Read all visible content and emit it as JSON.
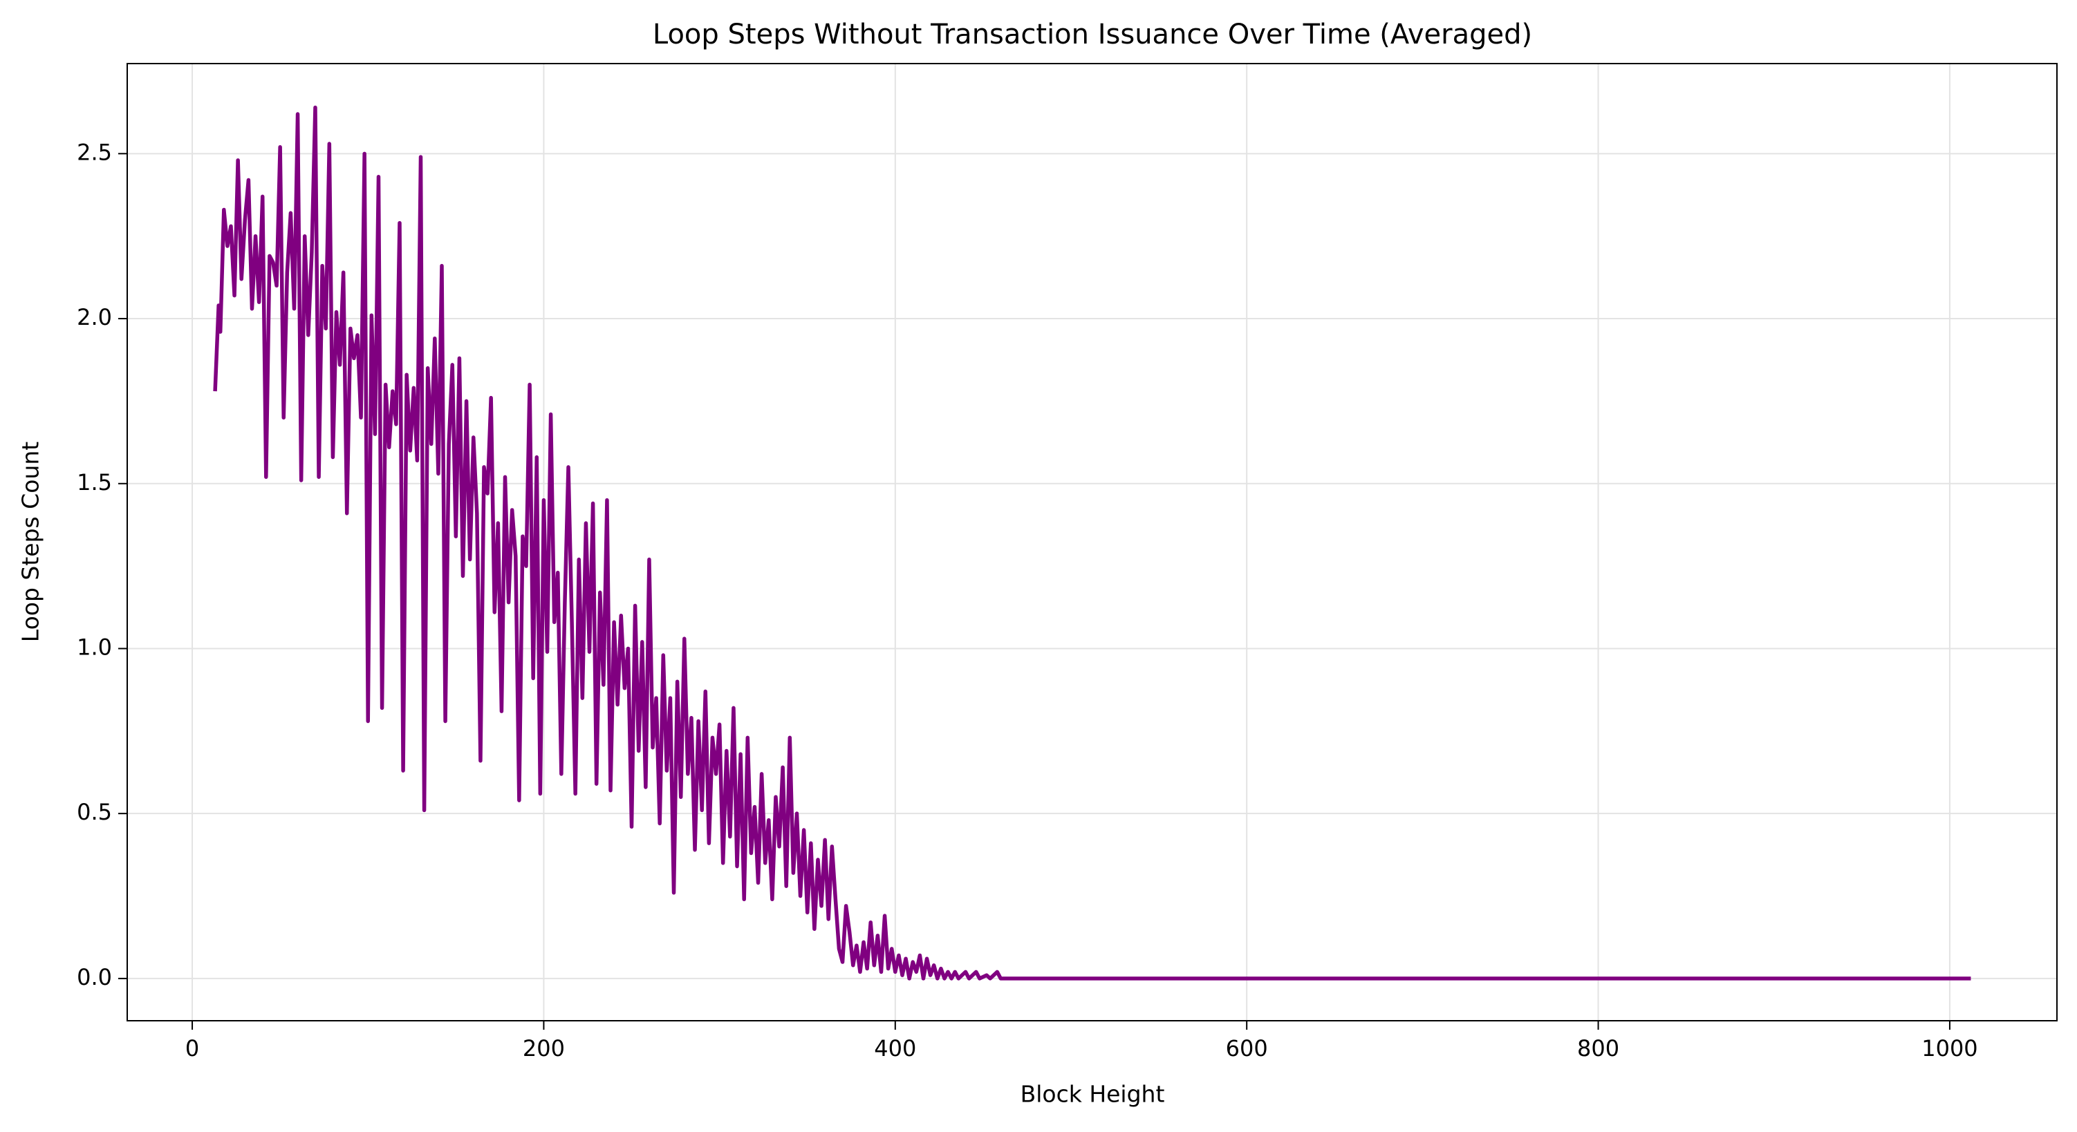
{
  "chart_data": {
    "type": "line",
    "title": "Loop Steps Without Transaction Issuance Over Time (Averaged)",
    "xlabel": "Block Height",
    "ylabel": "Loop Steps Count",
    "grid": true,
    "xlim": [
      -37,
      1061
    ],
    "ylim": [
      -0.128,
      2.773
    ],
    "xticks": [
      0,
      200,
      400,
      600,
      800,
      1000
    ],
    "yticks": [
      {
        "value": 0,
        "label": "0.0"
      },
      {
        "value": 0.5,
        "label": "0.5"
      },
      {
        "value": 1,
        "label": "1.0"
      },
      {
        "value": 1.5,
        "label": "1.5"
      },
      {
        "value": 2,
        "label": "2.0"
      },
      {
        "value": 2.5,
        "label": "2.5"
      }
    ],
    "x": [
      13,
      15,
      16,
      18,
      20,
      22,
      24,
      26,
      28,
      30,
      32,
      34,
      36,
      38,
      40,
      42,
      44,
      46,
      48,
      50,
      52,
      54,
      56,
      58,
      60,
      62,
      64,
      66,
      68,
      70,
      72,
      74,
      76,
      78,
      80,
      82,
      84,
      86,
      88,
      90,
      92,
      94,
      96,
      98,
      100,
      102,
      104,
      106,
      108,
      110,
      112,
      114,
      116,
      118,
      120,
      122,
      124,
      126,
      128,
      130,
      132,
      134,
      136,
      138,
      140,
      142,
      144,
      146,
      148,
      150,
      152,
      154,
      156,
      158,
      160,
      162,
      164,
      166,
      168,
      170,
      172,
      174,
      176,
      178,
      180,
      182,
      184,
      186,
      188,
      190,
      192,
      194,
      196,
      198,
      200,
      202,
      204,
      206,
      208,
      210,
      212,
      214,
      216,
      218,
      220,
      222,
      224,
      226,
      228,
      230,
      232,
      234,
      236,
      238,
      240,
      242,
      244,
      246,
      248,
      250,
      252,
      254,
      256,
      258,
      260,
      262,
      264,
      266,
      268,
      270,
      272,
      274,
      276,
      278,
      280,
      282,
      284,
      286,
      288,
      290,
      292,
      294,
      296,
      298,
      300,
      302,
      304,
      306,
      308,
      310,
      312,
      314,
      316,
      318,
      320,
      322,
      324,
      326,
      328,
      330,
      332,
      334,
      336,
      338,
      340,
      342,
      344,
      346,
      348,
      350,
      352,
      354,
      356,
      358,
      360,
      362,
      364,
      366,
      368,
      370,
      372,
      374,
      376,
      378,
      380,
      382,
      384,
      386,
      388,
      390,
      392,
      394,
      396,
      398,
      400,
      402,
      404,
      406,
      408,
      410,
      412,
      414,
      416,
      418,
      420,
      422,
      424,
      426,
      428,
      430,
      432,
      434,
      436,
      440,
      442,
      446,
      448,
      452,
      454,
      458,
      460,
      1012
    ],
    "series": [
      {
        "name": "Loop Steps",
        "color": "#800080",
        "values": [
          1.78,
          2.04,
          1.96,
          2.33,
          2.22,
          2.28,
          2.07,
          2.48,
          2.12,
          2.3,
          2.42,
          2.03,
          2.25,
          2.05,
          2.37,
          1.52,
          2.19,
          2.17,
          2.1,
          2.52,
          1.7,
          2.14,
          2.32,
          2.03,
          2.62,
          1.51,
          2.25,
          1.95,
          2.2,
          2.64,
          1.52,
          2.16,
          1.97,
          2.53,
          1.58,
          2.02,
          1.86,
          2.14,
          1.41,
          1.97,
          1.88,
          1.95,
          1.7,
          2.5,
          0.78,
          2.01,
          1.65,
          2.43,
          0.82,
          1.8,
          1.61,
          1.78,
          1.68,
          2.29,
          0.63,
          1.83,
          1.6,
          1.79,
          1.57,
          2.49,
          0.51,
          1.85,
          1.62,
          1.94,
          1.53,
          2.16,
          0.78,
          1.62,
          1.86,
          1.34,
          1.88,
          1.22,
          1.75,
          1.27,
          1.64,
          1.41,
          0.66,
          1.55,
          1.47,
          1.76,
          1.11,
          1.38,
          0.81,
          1.52,
          1.14,
          1.42,
          1.28,
          0.54,
          1.34,
          1.25,
          1.8,
          0.91,
          1.58,
          0.56,
          1.45,
          0.99,
          1.71,
          1.08,
          1.23,
          0.62,
          1.14,
          1.55,
          1.08,
          0.56,
          1.27,
          0.85,
          1.38,
          0.99,
          1.44,
          0.59,
          1.17,
          0.89,
          1.45,
          0.57,
          1.08,
          0.83,
          1.1,
          0.88,
          1.0,
          0.46,
          1.13,
          0.69,
          1.02,
          0.58,
          1.27,
          0.7,
          0.85,
          0.47,
          0.98,
          0.63,
          0.85,
          0.26,
          0.9,
          0.55,
          1.03,
          0.62,
          0.79,
          0.39,
          0.78,
          0.51,
          0.87,
          0.41,
          0.73,
          0.62,
          0.77,
          0.35,
          0.69,
          0.43,
          0.82,
          0.34,
          0.68,
          0.24,
          0.73,
          0.38,
          0.52,
          0.29,
          0.62,
          0.35,
          0.48,
          0.24,
          0.55,
          0.4,
          0.64,
          0.28,
          0.73,
          0.32,
          0.5,
          0.25,
          0.45,
          0.2,
          0.41,
          0.15,
          0.36,
          0.22,
          0.42,
          0.18,
          0.4,
          0.24,
          0.09,
          0.05,
          0.22,
          0.14,
          0.04,
          0.1,
          0.02,
          0.11,
          0.03,
          0.17,
          0.04,
          0.13,
          0.02,
          0.19,
          0.03,
          0.09,
          0.02,
          0.07,
          0.01,
          0.06,
          0,
          0.05,
          0.02,
          0.07,
          0,
          0.06,
          0.01,
          0.04,
          0,
          0.03,
          0,
          0.02,
          0,
          0.02,
          0,
          0.02,
          0,
          0.02,
          0,
          0.01,
          0,
          0.02,
          0,
          0
        ]
      }
    ]
  }
}
